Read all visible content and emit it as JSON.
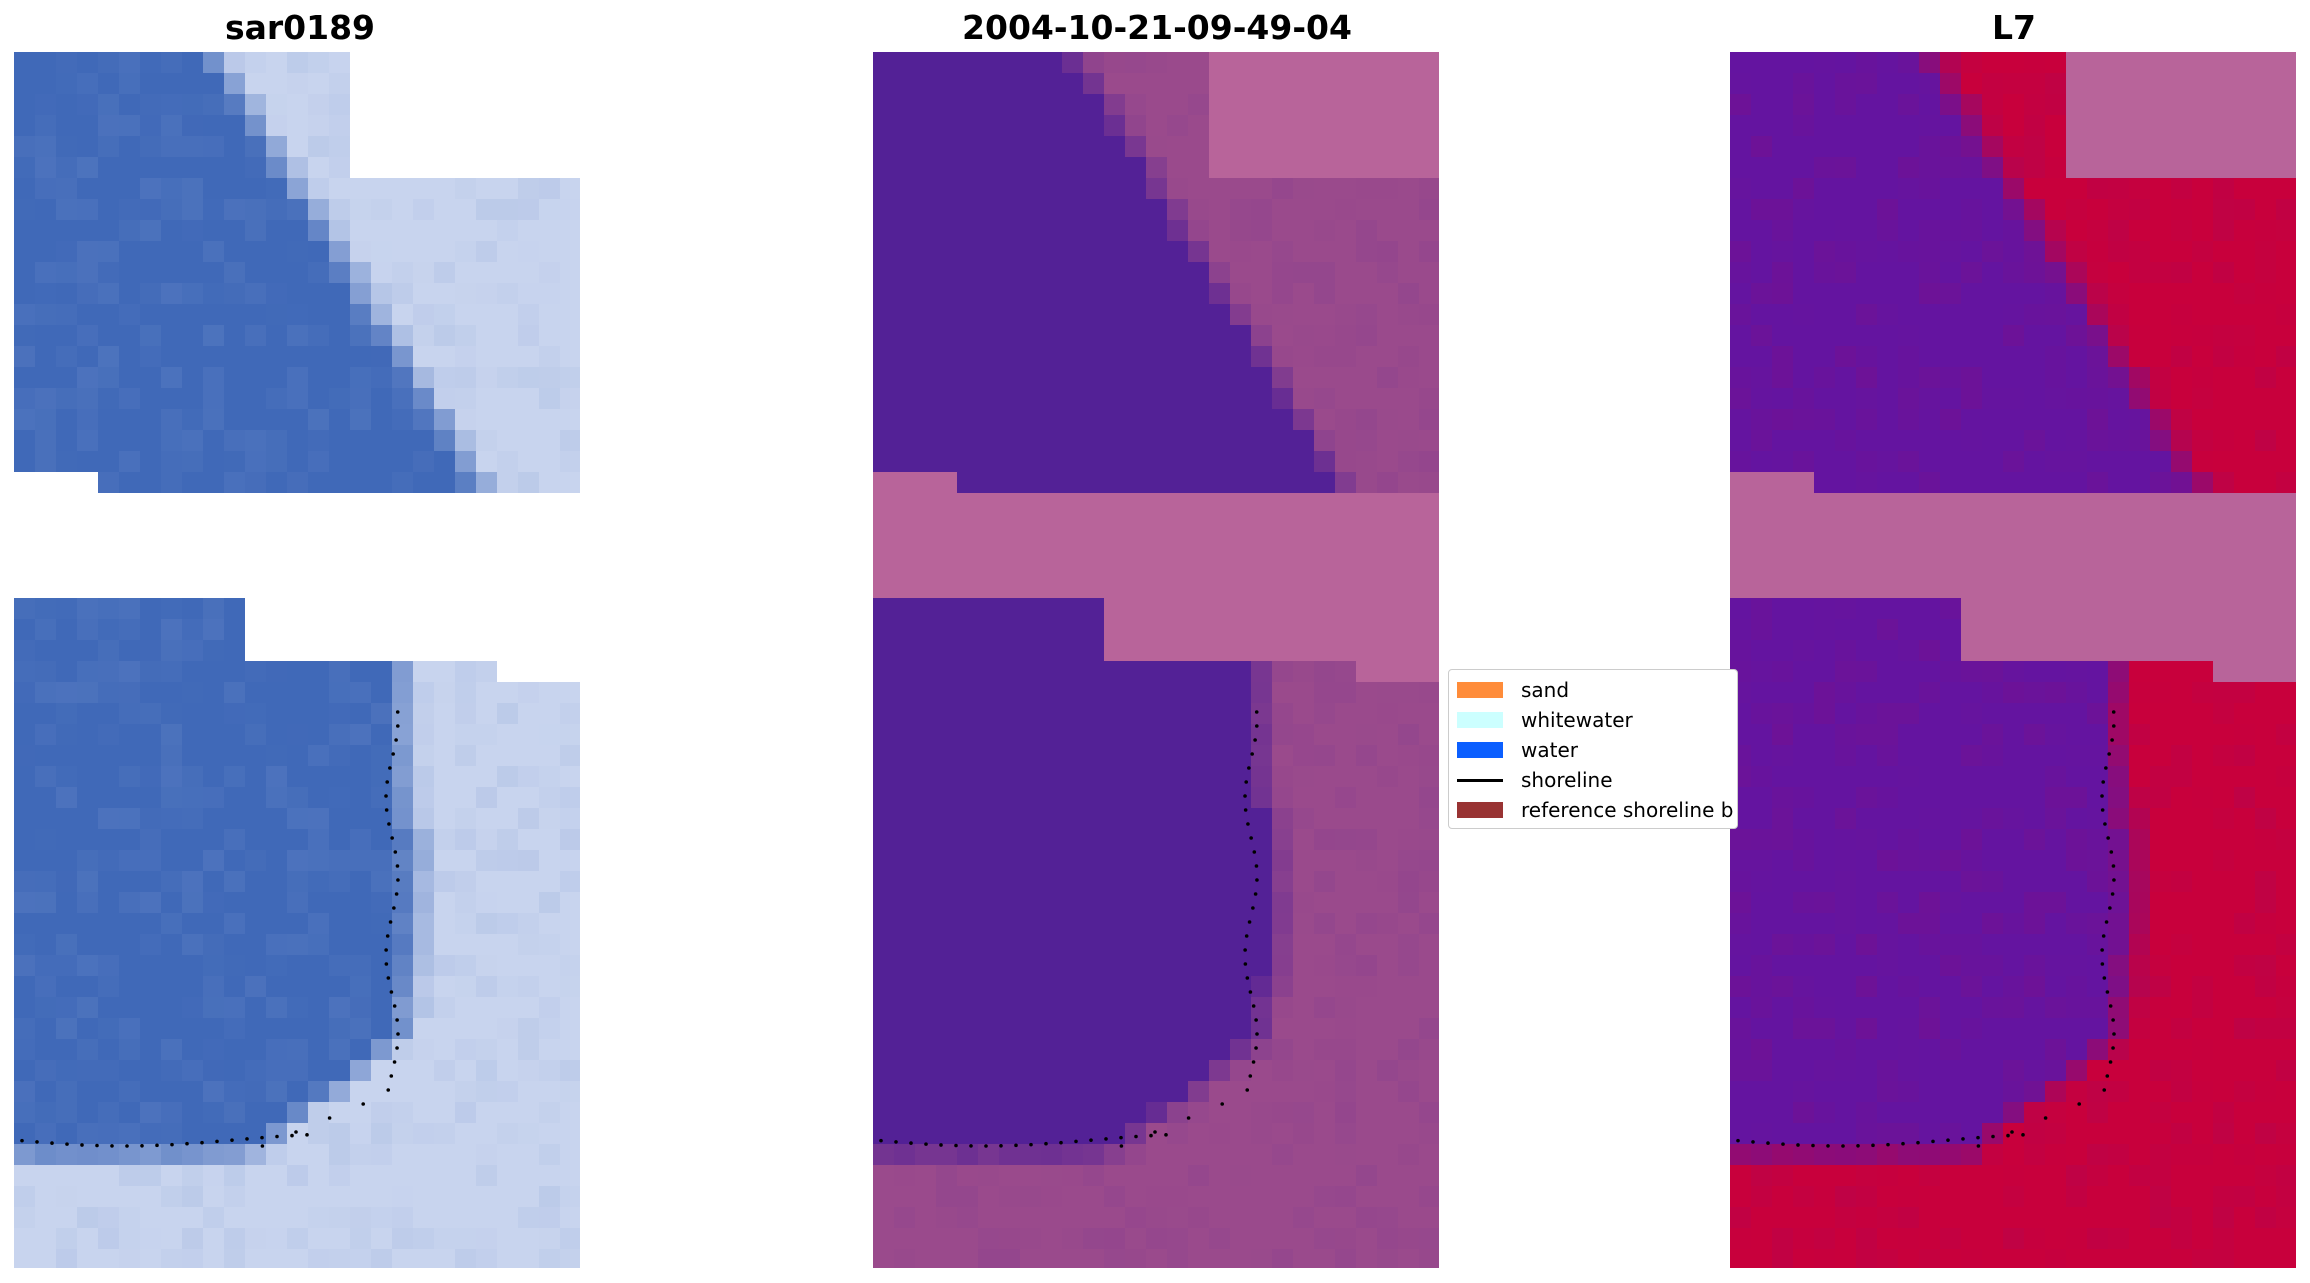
{
  "panels": [
    {
      "title": "sar0189",
      "kind": "rgb"
    },
    {
      "title": "2004-10-21-09-49-04",
      "kind": "classified"
    },
    {
      "title": "L7",
      "kind": "index"
    }
  ],
  "legend": {
    "items": [
      {
        "label": "sand",
        "color": "#ff8c3a",
        "type": "patch"
      },
      {
        "label": "whitewater",
        "color": "#ccffff",
        "type": "patch"
      },
      {
        "label": "water",
        "color": "#0b5fff",
        "type": "patch"
      },
      {
        "label": "shoreline",
        "color": "#000000",
        "type": "line"
      },
      {
        "label": "reference shoreline b",
        "color": "#993333",
        "type": "patch"
      }
    ]
  },
  "colors": {
    "rgb_water": "#4069b8",
    "rgb_surf": "#c8d4ee",
    "classified_water": "#532196",
    "classified_land": "#b8649a",
    "index_water": "#6414a0",
    "index_land": "#c8003c",
    "nodata_overlay": "#b8649a",
    "shoreline_points": "#000000"
  }
}
